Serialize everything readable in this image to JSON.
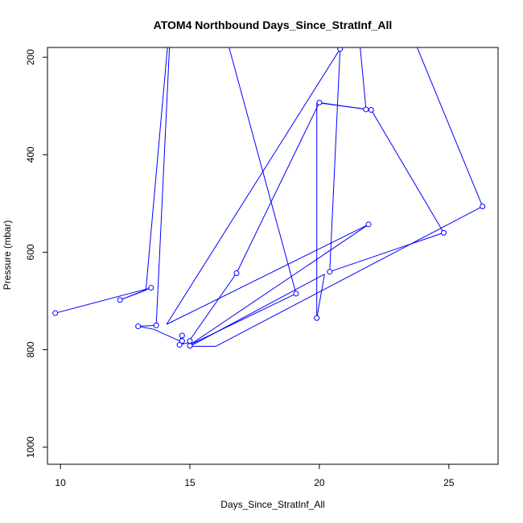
{
  "chart_data": {
    "type": "line",
    "title": "ATOM4 Northbound Days_Since_StratInf_All",
    "xlabel": "Days_Since_StratInf_All",
    "ylabel": "Pressure (mbar)",
    "xlim": [
      9.5,
      26.9
    ],
    "ylim": [
      1035,
      180
    ],
    "y_axis_inverted": true,
    "x_ticks": [
      10,
      15,
      20,
      25
    ],
    "y_ticks": [
      200,
      400,
      600,
      800,
      1000
    ],
    "grid": false,
    "color": "#0000FF",
    "series": [
      {
        "points": [
          {
            "x": 9.8,
            "y": 725
          },
          {
            "x": 13.5,
            "y": 673
          },
          {
            "x": 12.3,
            "y": 698
          },
          {
            "x": 13.3,
            "y": 678
          },
          {
            "x": 14.3,
            "y": 80
          },
          {
            "x": 13.7,
            "y": 750
          },
          {
            "x": 13.0,
            "y": 752
          },
          {
            "x": 13.6,
            "y": 758
          },
          {
            "x": 14.6,
            "y": 782
          },
          {
            "x": 14.7,
            "y": 771
          },
          {
            "x": 14.7,
            "y": 782
          },
          {
            "x": 14.6,
            "y": 790
          },
          {
            "x": 15.0,
            "y": 785
          },
          {
            "x": 15.0,
            "y": 780
          },
          {
            "x": 16.8,
            "y": 643
          },
          {
            "x": 20.0,
            "y": 293
          },
          {
            "x": 21.8,
            "y": 307
          },
          {
            "x": 21.4,
            "y": 80
          },
          {
            "x": 23.0,
            "y": 80
          },
          {
            "x": 26.3,
            "y": 506
          },
          {
            "x": 16.0,
            "y": 793
          },
          {
            "x": 15.0,
            "y": 793
          },
          {
            "x": 20.2,
            "y": 645
          },
          {
            "x": 19.9,
            "y": 735
          },
          {
            "x": 19.9,
            "y": 293
          },
          {
            "x": 22.0,
            "y": 308
          },
          {
            "x": 24.8,
            "y": 560
          },
          {
            "x": 20.4,
            "y": 640
          },
          {
            "x": 20.8,
            "y": 183
          },
          {
            "x": 14.1,
            "y": 748
          },
          {
            "x": 21.9,
            "y": 543
          },
          {
            "x": 15.0,
            "y": 790
          },
          {
            "x": 19.1,
            "y": 685
          },
          {
            "x": 16.0,
            "y": 80
          }
        ],
        "markers": [
          {
            "x": 9.8,
            "y": 725
          },
          {
            "x": 12.3,
            "y": 698
          },
          {
            "x": 13.5,
            "y": 673
          },
          {
            "x": 13.0,
            "y": 752
          },
          {
            "x": 13.7,
            "y": 750
          },
          {
            "x": 14.7,
            "y": 771
          },
          {
            "x": 14.7,
            "y": 782
          },
          {
            "x": 14.6,
            "y": 790
          },
          {
            "x": 15.0,
            "y": 782
          },
          {
            "x": 15.0,
            "y": 792
          },
          {
            "x": 16.8,
            "y": 643
          },
          {
            "x": 19.1,
            "y": 685
          },
          {
            "x": 19.9,
            "y": 735
          },
          {
            "x": 20.0,
            "y": 293
          },
          {
            "x": 20.4,
            "y": 640
          },
          {
            "x": 20.8,
            "y": 183
          },
          {
            "x": 21.8,
            "y": 307
          },
          {
            "x": 22.0,
            "y": 308
          },
          {
            "x": 21.9,
            "y": 543
          },
          {
            "x": 24.8,
            "y": 560
          },
          {
            "x": 26.3,
            "y": 506
          }
        ]
      }
    ]
  }
}
